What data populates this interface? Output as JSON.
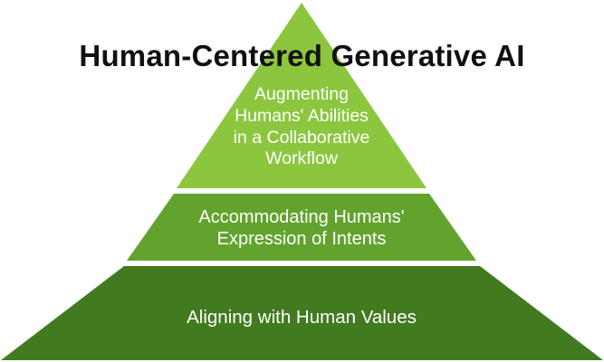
{
  "title": "Human-Centered Generative AI",
  "tiers": [
    {
      "label_lines": [
        "Augmenting",
        "Humans' Abilities",
        "in a Collaborative",
        "Workflow"
      ],
      "color": "#8cc63f"
    },
    {
      "label_lines": [
        "Accommodating Humans'",
        "Expression of Intents"
      ],
      "color": "#62a32e"
    },
    {
      "label_lines": [
        "Aligning with Human Values"
      ],
      "color": "#427a20"
    }
  ],
  "colors": {
    "background": "#ffffff",
    "title": "#111111",
    "tier_text": "#ffffff"
  }
}
